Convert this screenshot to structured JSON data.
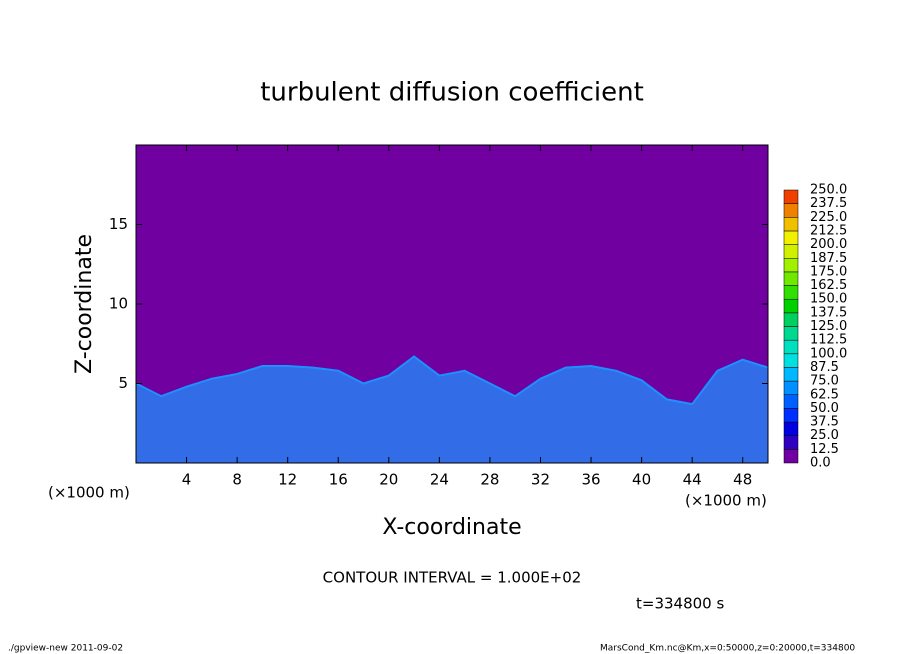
{
  "chart_data": {
    "type": "contour",
    "title": "turbulent diffusion coefficient",
    "xlabel": "X-coordinate",
    "ylabel": "Z-coordinate",
    "x_unit_left": "(×1000 m)",
    "x_unit_right": "(×1000 m)",
    "contour_interval": "CONTOUR INTERVAL = 1.000E+02",
    "time_label": "t=334800 s",
    "footer_left": "./gpview-new  2011-09-02",
    "footer_right": "MarsCond_Km.nc@Km,x=0:50000,z=0:20000,t=334800",
    "xlim": [
      0,
      50
    ],
    "ylim": [
      0,
      20
    ],
    "xticks": [
      4,
      8,
      12,
      16,
      20,
      24,
      28,
      32,
      36,
      40,
      44,
      48
    ],
    "yticks": [
      5,
      10,
      15
    ],
    "background_color": "#7000a0",
    "turbulent_layer": {
      "color": "#1e90ff",
      "x": [
        0,
        2,
        4,
        6,
        8,
        10,
        12,
        14,
        16,
        18,
        20,
        22,
        24,
        26,
        28,
        30,
        32,
        34,
        36,
        38,
        40,
        42,
        44,
        46,
        48,
        50
      ],
      "values": [
        5,
        4.2,
        4.8,
        5.3,
        5.6,
        6.1,
        6.1,
        6,
        5.8,
        5,
        5.5,
        6.7,
        5.5,
        5.8,
        5,
        4.2,
        5.3,
        6,
        6.1,
        5.8,
        5.2,
        4,
        3.7,
        5.8,
        6.5,
        6
      ]
    },
    "colorbar": {
      "levels": [
        {
          "value": 0,
          "label": "0.0"
        },
        {
          "value": 12.5,
          "label": "12.5"
        },
        {
          "value": 25,
          "label": "25.0"
        },
        {
          "value": 37.5,
          "label": "37.5"
        },
        {
          "value": 50,
          "label": "50.0"
        },
        {
          "value": 62.5,
          "label": "62.5"
        },
        {
          "value": 75,
          "label": "75.0"
        },
        {
          "value": 87.5,
          "label": "87.5"
        },
        {
          "value": 100,
          "label": "100.0"
        },
        {
          "value": 112.5,
          "label": "112.5"
        },
        {
          "value": 125,
          "label": "125.0"
        },
        {
          "value": 137.5,
          "label": "137.5"
        },
        {
          "value": 150,
          "label": "150.0"
        },
        {
          "value": 162.5,
          "label": "162.5"
        },
        {
          "value": 175,
          "label": "175.0"
        },
        {
          "value": 187.5,
          "label": "187.5"
        },
        {
          "value": 200,
          "label": "200.0"
        },
        {
          "value": 212.5,
          "label": "212.5"
        },
        {
          "value": 225,
          "label": "225.0"
        },
        {
          "value": 237.5,
          "label": "237.5"
        },
        {
          "value": 250,
          "label": "250.0"
        }
      ],
      "colors": [
        "#7000a0",
        "#3000c0",
        "#0000e0",
        "#0030ff",
        "#0060ff",
        "#0090ff",
        "#00b8ff",
        "#00e0e0",
        "#00e0c0",
        "#00d890",
        "#00d060",
        "#00d000",
        "#30e000",
        "#70e800",
        "#a0f000",
        "#d0f000",
        "#f0f000",
        "#f0c000",
        "#f08000",
        "#f04000"
      ]
    }
  }
}
